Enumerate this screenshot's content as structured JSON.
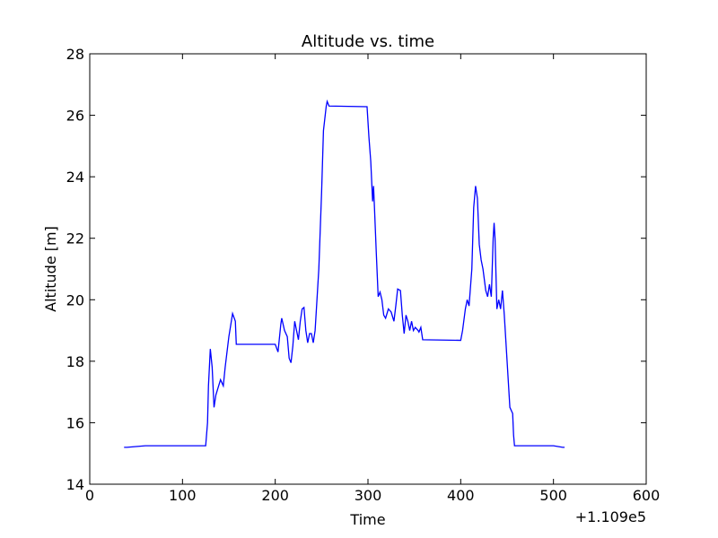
{
  "chart_data": {
    "type": "line",
    "title": "Altitude vs. time",
    "x_label": "Time",
    "y_label": "Altitude [m]",
    "x_offset_label": "+1.109e5",
    "color": "#0000ff",
    "x": [
      37,
      40,
      60,
      100,
      125,
      127,
      128,
      130,
      132,
      134,
      136,
      138,
      141,
      144,
      146,
      150,
      154,
      157,
      158,
      200,
      203,
      206,
      207,
      210,
      213,
      215,
      217,
      219,
      221,
      223,
      225,
      227,
      229,
      231,
      233,
      235,
      237,
      239,
      241,
      243,
      247,
      250,
      252,
      255,
      256,
      258,
      299,
      301,
      303,
      305,
      306,
      307,
      309,
      311,
      313,
      315,
      317,
      319,
      322,
      325,
      328,
      330,
      332,
      335,
      337,
      339,
      341,
      343,
      345,
      347,
      349,
      351,
      354,
      355,
      357,
      359,
      400,
      402,
      405,
      407,
      409,
      412,
      414,
      416,
      418,
      420,
      422,
      424,
      427,
      429,
      431,
      433,
      435,
      436,
      437,
      439,
      441,
      443,
      445,
      447,
      450,
      453,
      456,
      457,
      458,
      500,
      510,
      512
    ],
    "values": [
      15.2,
      15.2,
      15.25,
      15.25,
      15.25,
      16,
      17.2,
      18.4,
      17.8,
      16.5,
      16.9,
      17.1,
      17.4,
      17.2,
      17.8,
      18.8,
      19.55,
      19.3,
      18.55,
      18.55,
      18.3,
      19.2,
      19.4,
      19.0,
      18.8,
      18.1,
      17.95,
      18.5,
      19.3,
      19.0,
      18.7,
      19.3,
      19.7,
      19.75,
      19.0,
      18.6,
      18.9,
      18.9,
      18.6,
      19.0,
      21,
      23.5,
      25.5,
      26.3,
      26.45,
      26.3,
      26.28,
      25.3,
      24.5,
      23.2,
      23.7,
      23,
      21.5,
      20.1,
      20.25,
      20.0,
      19.5,
      19.4,
      19.7,
      19.6,
      19.3,
      19.8,
      20.35,
      20.3,
      19.5,
      18.9,
      19.5,
      19.3,
      19.0,
      19.3,
      19.0,
      19.1,
      19.0,
      18.95,
      19.1,
      18.7,
      18.68,
      19.0,
      19.7,
      20.0,
      19.8,
      21,
      23,
      23.7,
      23.3,
      21.8,
      21.3,
      21.0,
      20.3,
      20.1,
      20.5,
      20.1,
      22.0,
      22.5,
      22.0,
      19.7,
      20.0,
      19.7,
      20.3,
      19.5,
      18.0,
      16.5,
      16.3,
      15.6,
      15.25,
      15.25,
      15.2,
      15.2
    ],
    "xlim": [
      0,
      600
    ],
    "xticks": [
      0,
      100,
      200,
      300,
      400,
      500,
      600
    ],
    "ylim": [
      14,
      28
    ],
    "yticks": [
      14,
      16,
      18,
      20,
      22,
      24,
      26,
      28
    ]
  }
}
